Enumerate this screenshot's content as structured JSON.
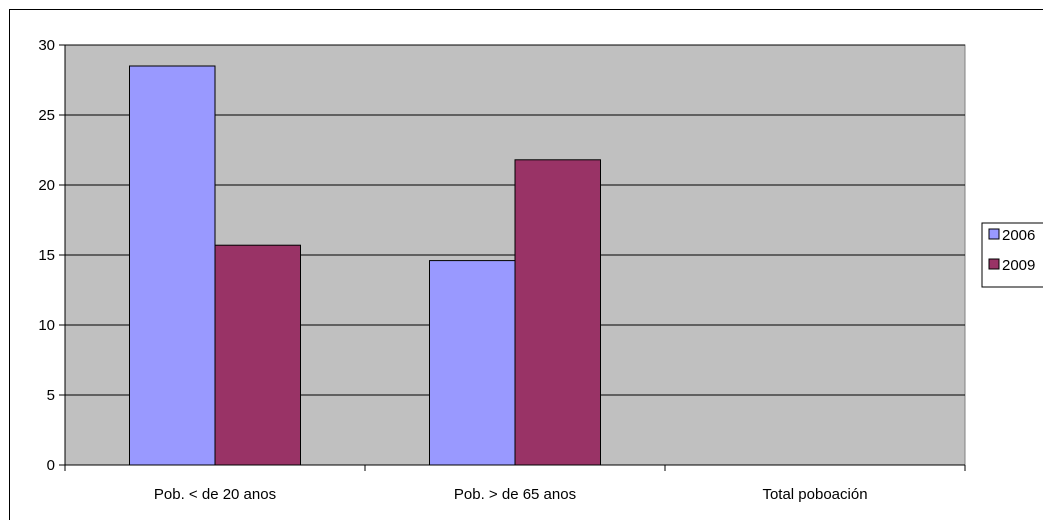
{
  "chart_data": {
    "type": "bar",
    "title": "",
    "xlabel": "",
    "ylabel": "",
    "categories": [
      "Pob. < de 20 anos",
      "Pob. > de 65 anos",
      "Total poboación"
    ],
    "series": [
      {
        "name": "2006",
        "color": "#9999ff",
        "values": [
          28.5,
          14.6,
          null
        ]
      },
      {
        "name": "2009",
        "color": "#993366",
        "values": [
          15.7,
          21.8,
          null
        ]
      }
    ],
    "ylim": [
      0,
      30
    ],
    "yticks": [
      0,
      5,
      10,
      15,
      20,
      25,
      30
    ],
    "grid": true,
    "plot_background": "#c0c0c0",
    "legend_position": "right"
  }
}
